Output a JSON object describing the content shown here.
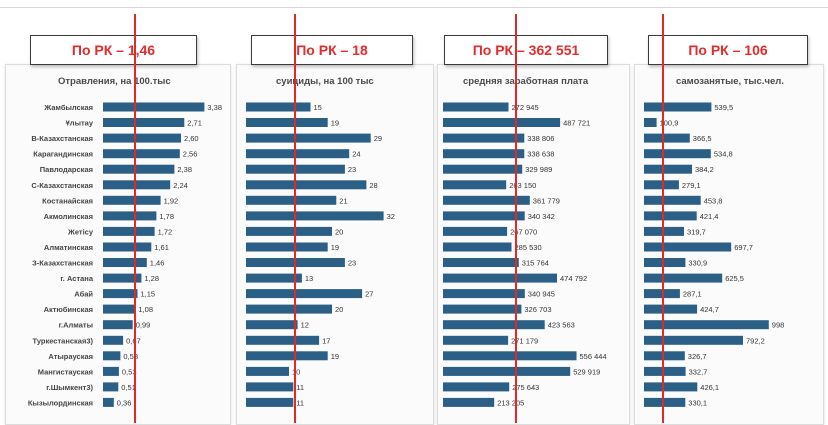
{
  "panels": [
    {
      "header": "По РК – 1,46",
      "subtitle": "Отравления, на 100.тыс"
    },
    {
      "header": "По РК – 18",
      "subtitle": "суициды, на 100 тыс"
    },
    {
      "header": "По РК – 362 551",
      "subtitle": "средняя заработная плата"
    },
    {
      "header": "По РК – 106",
      "subtitle": "самозанятые, тыс.чел."
    }
  ],
  "colors": {
    "bar": "#2b5f86",
    "reference_line": "#e02a2a",
    "header_text": "#e52b2b"
  },
  "chart_data": [
    {
      "type": "bar",
      "orientation": "horizontal",
      "title": "Отравления, на 100.тыс",
      "reference_label": "По РК – 1,46",
      "reference_value": 1.46,
      "categories": [
        "Жамбылская",
        "Ұлытау",
        "В-Казахстанская",
        "Карагандинская",
        "Павлодарская",
        "С-Казахстанская",
        "Костанайская",
        "Акмолинская",
        "Жетісу",
        "Алматинская",
        "З-Казахстанская",
        "г. Астана",
        "Абай",
        "Актюбинская",
        "г.Алматы",
        "Туркестанская3)",
        "Атырауская",
        "Мангистауская",
        "г.Шымкент3)",
        "Кызылординская"
      ],
      "values": [
        3.38,
        2.71,
        2.6,
        2.56,
        2.38,
        2.24,
        1.92,
        1.78,
        1.72,
        1.61,
        1.46,
        1.28,
        1.15,
        1.08,
        0.99,
        0.67,
        0.58,
        0.53,
        0.51,
        0.36
      ],
      "value_labels": [
        "3,38",
        "2,71",
        "2,60",
        "2,56",
        "2,38",
        "2,24",
        "1,92",
        "1,78",
        "1,72",
        "1,61",
        "1,46",
        "1,28",
        "1,15",
        "1,08",
        "0,99",
        "0,67",
        "0,58",
        "0,53",
        "0,51",
        "0,36"
      ]
    },
    {
      "type": "bar",
      "orientation": "horizontal",
      "title": "суициды, на 100 тыс",
      "reference_label": "По РК – 18",
      "reference_value": 18,
      "values": [
        15,
        19,
        29,
        24,
        23,
        28,
        21,
        32,
        20,
        19,
        23,
        13,
        27,
        20,
        12,
        17,
        19,
        10,
        11,
        11
      ],
      "value_labels": [
        "15",
        "19",
        "29",
        "24",
        "23",
        "28",
        "21",
        "32",
        "20",
        "19",
        "23",
        "13",
        "27",
        "20",
        "12",
        "17",
        "19",
        "10",
        "11",
        "11"
      ]
    },
    {
      "type": "bar",
      "orientation": "horizontal",
      "title": "средняя заработная плата",
      "reference_label": "По РК – 362 551",
      "reference_value": 362551,
      "values": [
        272945,
        487721,
        338806,
        338638,
        329989,
        263150,
        361779,
        340342,
        267070,
        285530,
        315764,
        474792,
        340945,
        326703,
        423563,
        271179,
        556444,
        529919,
        275643,
        213205
      ],
      "value_labels": [
        "272 945",
        "487 721",
        "338 806",
        "338 638",
        "329 989",
        "263 150",
        "361 779",
        "340 342",
        "267 070",
        "285 530",
        "315 764",
        "474 792",
        "340 945",
        "326 703",
        "423 563",
        "271 179",
        "556 444",
        "529 919",
        "275 643",
        "213 205"
      ]
    },
    {
      "type": "bar",
      "orientation": "horizontal",
      "title": "самозанятые, тыс.чел.",
      "reference_label": "По РК – 106",
      "reference_value": 106,
      "values": [
        539.5,
        100.9,
        366.5,
        534.8,
        384.2,
        279.1,
        453.8,
        421.4,
        319.7,
        697.7,
        330.9,
        625.5,
        287.1,
        424.7,
        998,
        792.2,
        326.7,
        332.7,
        426.1,
        330.1
      ],
      "value_labels": [
        "539,5",
        "100,9",
        "366,5",
        "534,8",
        "384,2",
        "279,1",
        "453,8",
        "421,4",
        "319,7",
        "697,7",
        "330,9",
        "625,5",
        "287,1",
        "424,7",
        "998",
        "792,2",
        "326,7",
        "332,7",
        "426,1",
        "330,1"
      ]
    }
  ]
}
